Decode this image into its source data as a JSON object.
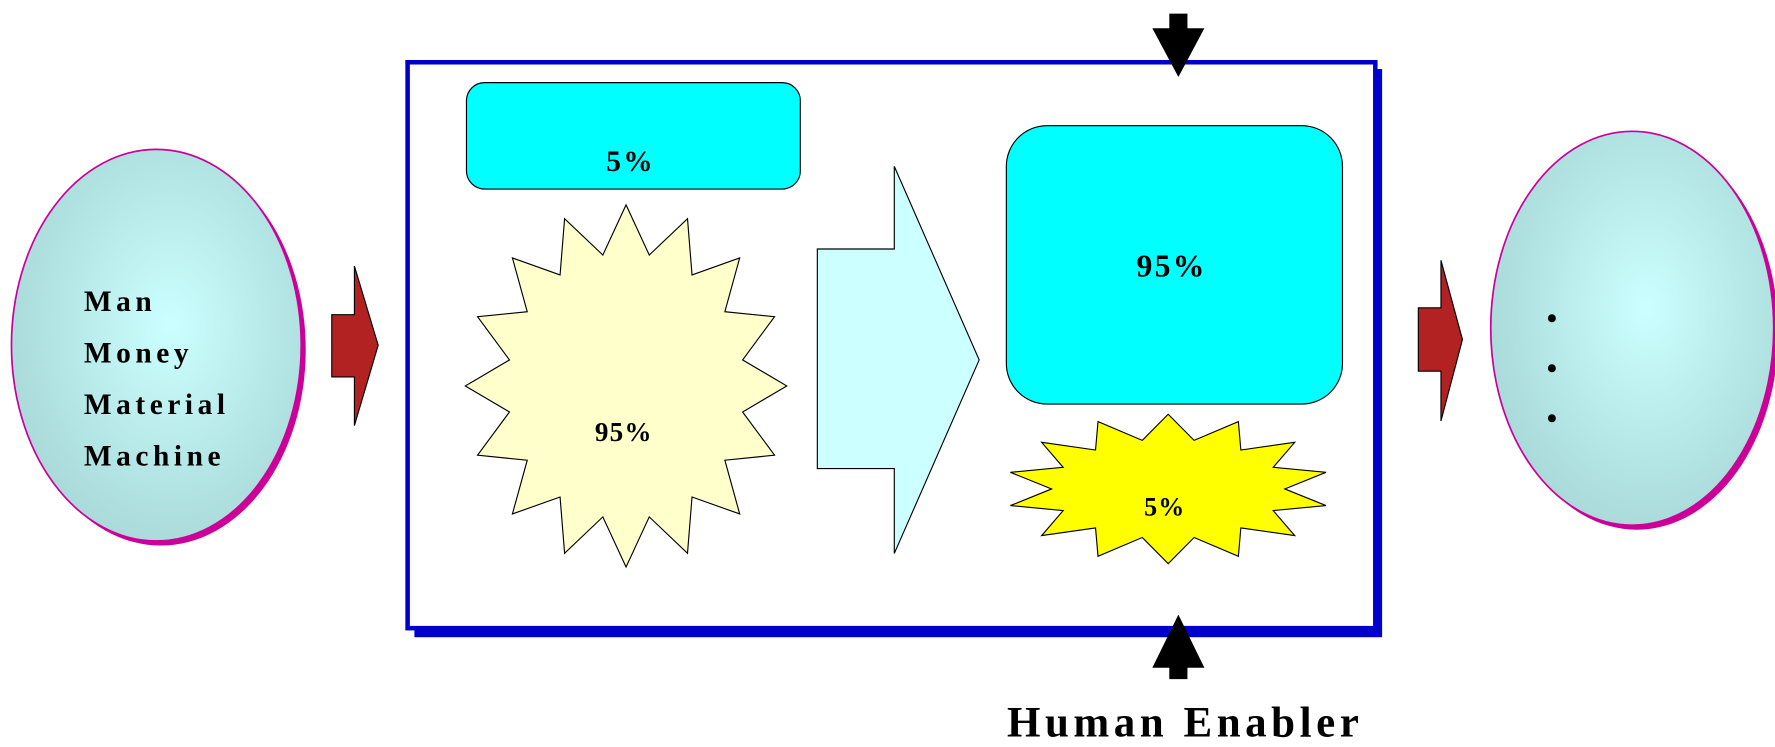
{
  "input": {
    "items": [
      "Man",
      "Money",
      "Material",
      "Machine"
    ]
  },
  "process": {
    "top_box": "5%",
    "left_star": "95%",
    "right_box": "95%",
    "bottom_star": "5%"
  },
  "output": {
    "items": [
      "•",
      "•",
      "•"
    ]
  },
  "caption": "Human Enabler"
}
